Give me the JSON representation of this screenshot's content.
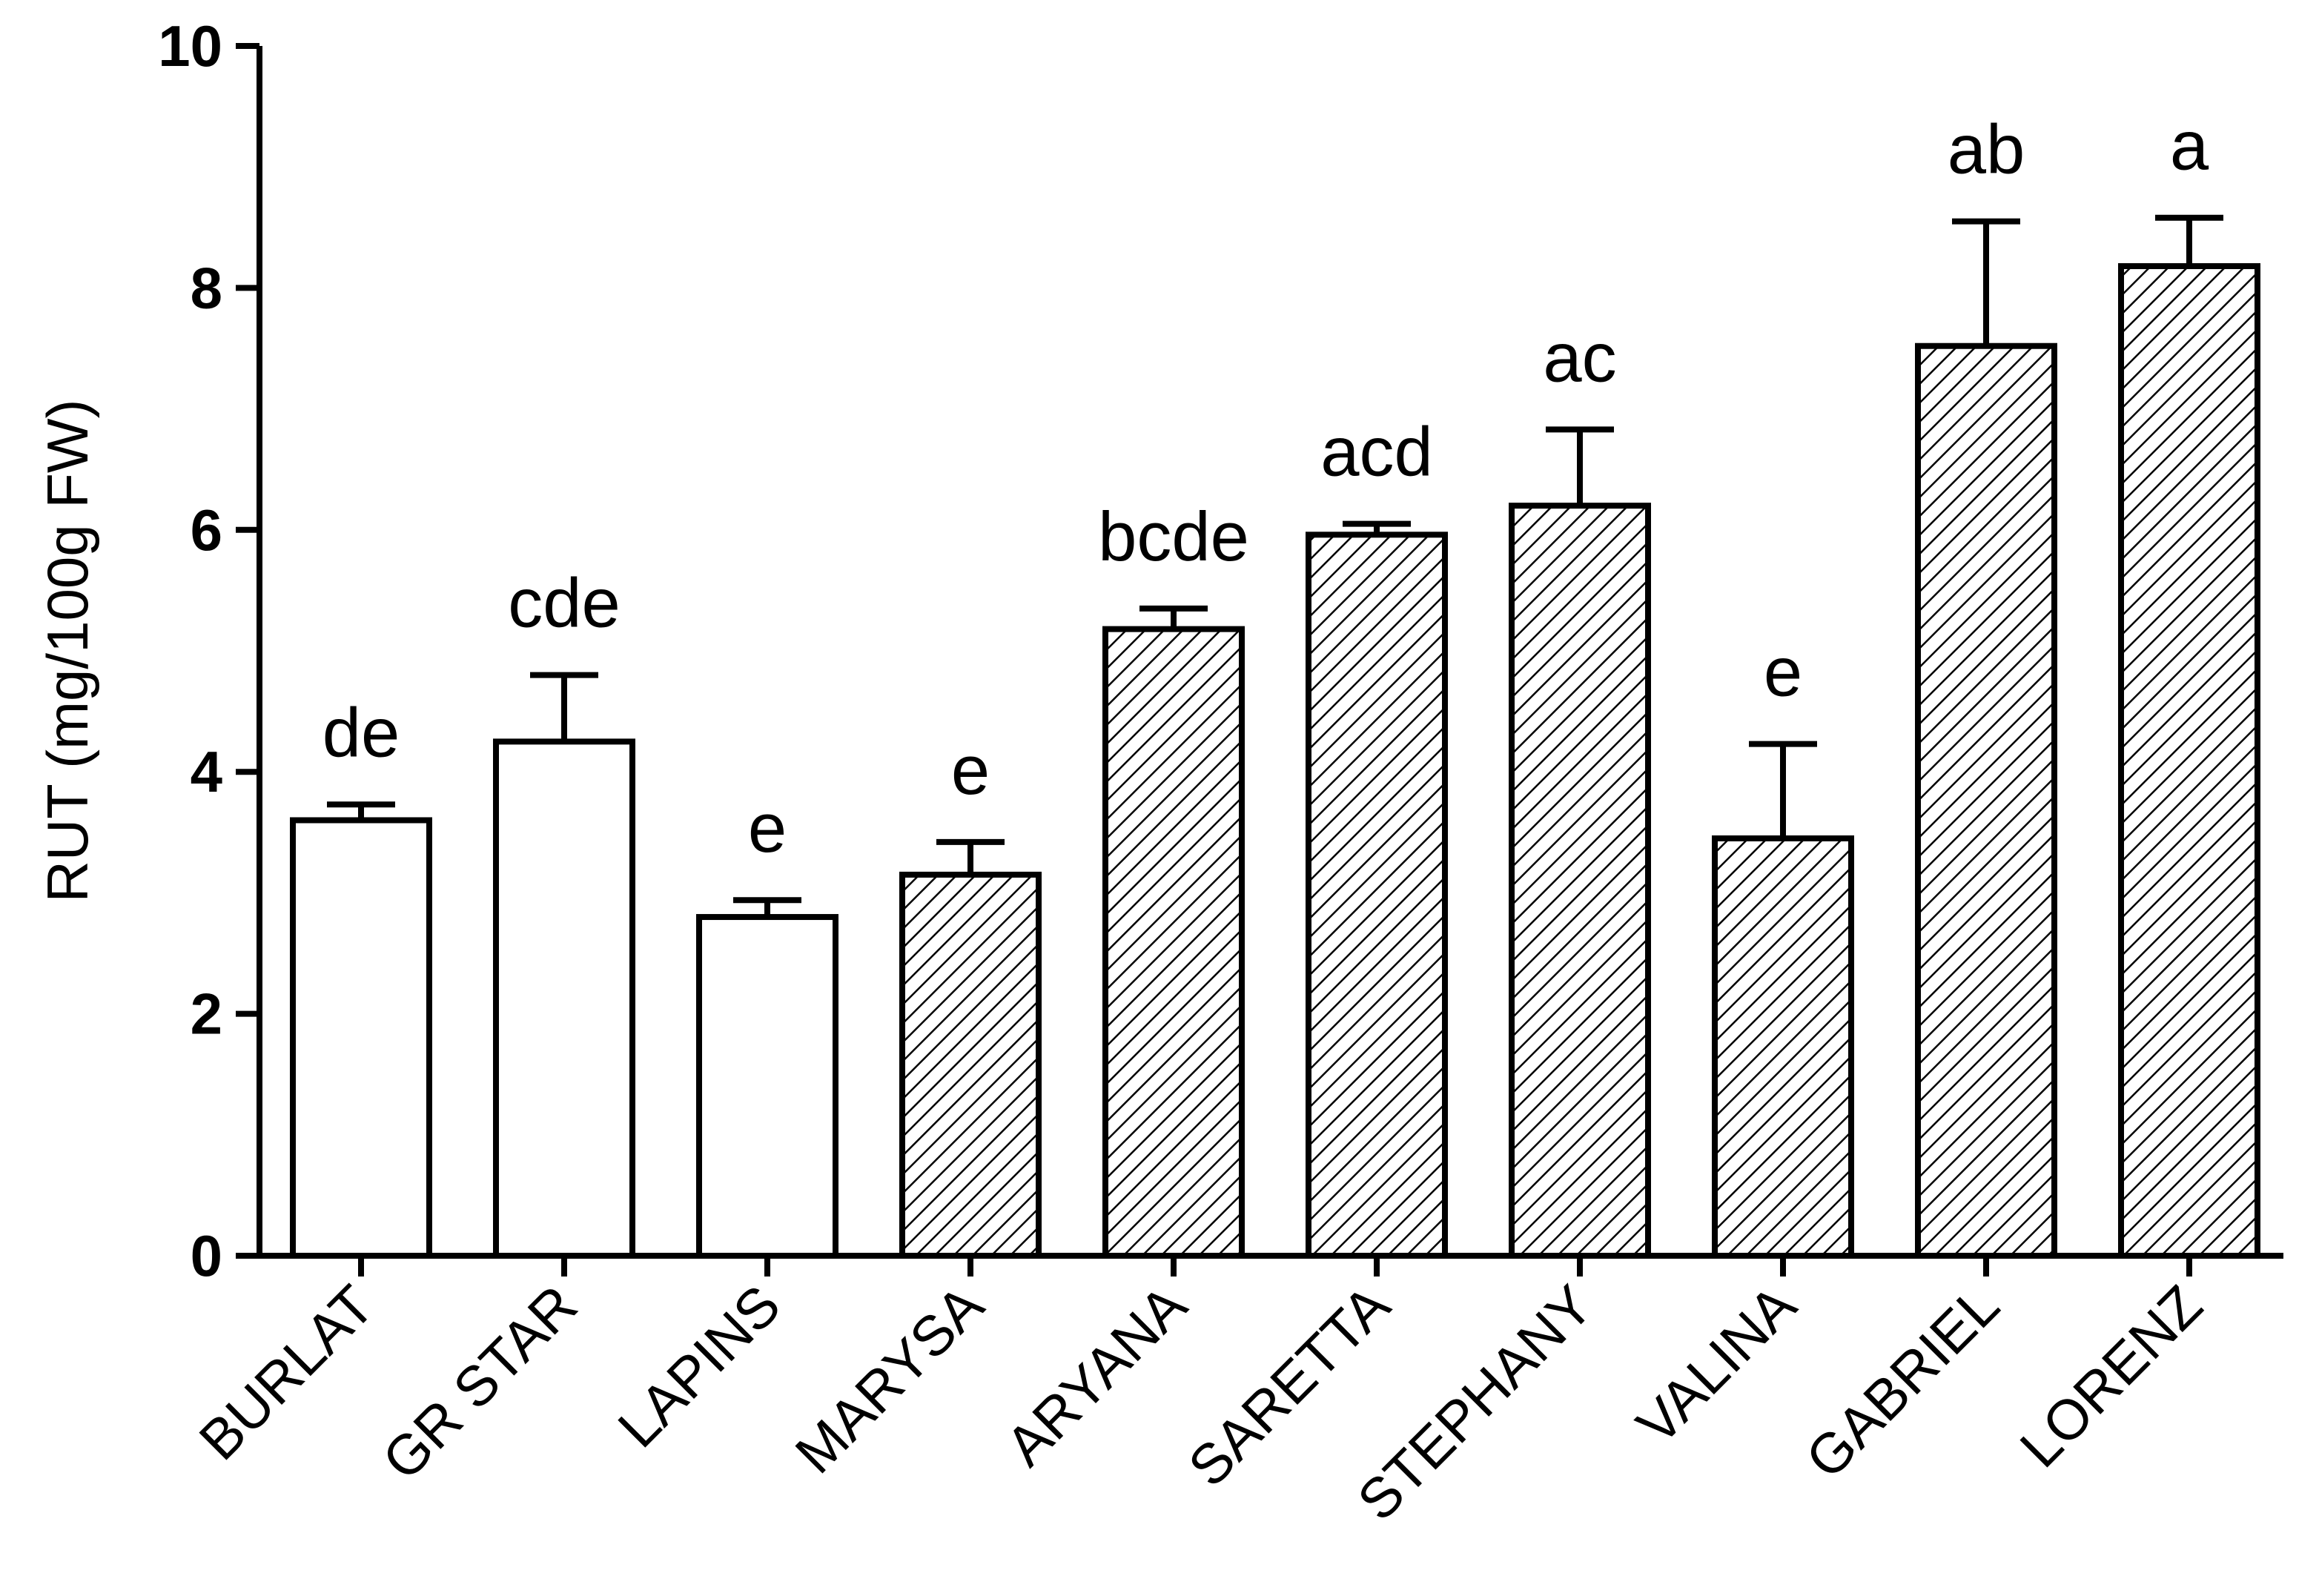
{
  "chart_data": {
    "type": "bar",
    "title": "",
    "xlabel": "",
    "ylabel": "RUT (mg/100g FW)",
    "ylim": [
      0,
      10
    ],
    "yticks": [
      0,
      2,
      4,
      6,
      8,
      10
    ],
    "ytick_labels": [
      "0",
      "2",
      "4",
      "6",
      "8",
      "10"
    ],
    "grid": false,
    "legend": "none",
    "categories": [
      "BURLAT",
      "GR STAR",
      "LAPINS",
      "MARYSA",
      "ARYANA",
      "SARETTA",
      "STEPHANY",
      "VALINA",
      "GABRIEL",
      "LORENZ"
    ],
    "values": [
      3.6,
      4.25,
      2.8,
      3.15,
      5.18,
      5.96,
      6.2,
      3.45,
      7.52,
      8.18
    ],
    "errors": [
      0.13,
      0.55,
      0.14,
      0.27,
      0.17,
      0.09,
      0.63,
      0.78,
      1.03,
      0.4
    ],
    "fill": [
      "open",
      "open",
      "open",
      "hatched",
      "hatched",
      "hatched",
      "hatched",
      "hatched",
      "hatched",
      "hatched"
    ],
    "group_labels": [
      "de",
      "cde",
      "e",
      "e",
      "bcde",
      "acd",
      "ac",
      "e",
      "ab",
      "a"
    ]
  },
  "colors": {
    "bar_stroke": "#000000",
    "bar_fill": "#ffffff",
    "hatch": "#000000",
    "background": "#ffffff"
  }
}
